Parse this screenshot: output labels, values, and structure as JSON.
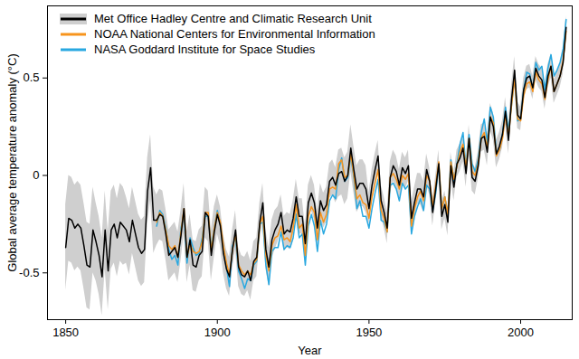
{
  "chart_data": {
    "type": "line",
    "xlabel": "Year",
    "ylabel": "Global average temperature anomaly (°C)",
    "xlim": [
      1844,
      2017
    ],
    "ylim": [
      -0.74,
      0.87
    ],
    "xticks": [
      1850,
      1900,
      1950,
      2000
    ],
    "yticks": [
      -0.5,
      0,
      0.5
    ],
    "grid": false,
    "legend": "top-left",
    "x": [
      1850,
      1851,
      1852,
      1853,
      1854,
      1855,
      1856,
      1857,
      1858,
      1859,
      1860,
      1861,
      1862,
      1863,
      1864,
      1865,
      1866,
      1867,
      1868,
      1869,
      1870,
      1871,
      1872,
      1873,
      1874,
      1875,
      1876,
      1877,
      1878,
      1879,
      1880,
      1881,
      1882,
      1883,
      1884,
      1885,
      1886,
      1887,
      1888,
      1889,
      1890,
      1891,
      1892,
      1893,
      1894,
      1895,
      1896,
      1897,
      1898,
      1899,
      1900,
      1901,
      1902,
      1903,
      1904,
      1905,
      1906,
      1907,
      1908,
      1909,
      1910,
      1911,
      1912,
      1913,
      1914,
      1915,
      1916,
      1917,
      1918,
      1919,
      1920,
      1921,
      1922,
      1923,
      1924,
      1925,
      1926,
      1927,
      1928,
      1929,
      1930,
      1931,
      1932,
      1933,
      1934,
      1935,
      1936,
      1937,
      1938,
      1939,
      1940,
      1941,
      1942,
      1943,
      1944,
      1945,
      1946,
      1947,
      1948,
      1949,
      1950,
      1951,
      1952,
      1953,
      1954,
      1955,
      1956,
      1957,
      1958,
      1959,
      1960,
      1961,
      1962,
      1963,
      1964,
      1965,
      1966,
      1967,
      1968,
      1969,
      1970,
      1971,
      1972,
      1973,
      1974,
      1975,
      1976,
      1977,
      1978,
      1979,
      1980,
      1981,
      1982,
      1983,
      1984,
      1985,
      1986,
      1987,
      1988,
      1989,
      1990,
      1991,
      1992,
      1993,
      1994,
      1995,
      1996,
      1997,
      1998,
      1999,
      2000,
      2001,
      2002,
      2003,
      2004,
      2005,
      2006,
      2007,
      2008,
      2009,
      2010,
      2011,
      2012,
      2013,
      2014,
      2015
    ],
    "series": [
      {
        "name": "Met Office Hadley Centre and Climatic Research Unit",
        "color": "#000000",
        "values": [
          -0.37,
          -0.22,
          -0.23,
          -0.27,
          -0.25,
          -0.27,
          -0.36,
          -0.46,
          -0.47,
          -0.28,
          -0.34,
          -0.41,
          -0.52,
          -0.28,
          -0.49,
          -0.28,
          -0.25,
          -0.32,
          -0.24,
          -0.26,
          -0.28,
          -0.34,
          -0.23,
          -0.3,
          -0.37,
          -0.4,
          -0.38,
          -0.08,
          0.04,
          -0.23,
          -0.23,
          -0.2,
          -0.21,
          -0.3,
          -0.41,
          -0.39,
          -0.37,
          -0.42,
          -0.31,
          -0.17,
          -0.42,
          -0.33,
          -0.46,
          -0.47,
          -0.41,
          -0.39,
          -0.19,
          -0.21,
          -0.41,
          -0.29,
          -0.2,
          -0.26,
          -0.4,
          -0.48,
          -0.52,
          -0.38,
          -0.28,
          -0.47,
          -0.51,
          -0.52,
          -0.49,
          -0.54,
          -0.44,
          -0.42,
          -0.24,
          -0.14,
          -0.38,
          -0.47,
          -0.33,
          -0.28,
          -0.25,
          -0.19,
          -0.3,
          -0.28,
          -0.29,
          -0.22,
          -0.11,
          -0.21,
          -0.21,
          -0.35,
          -0.14,
          -0.09,
          -0.14,
          -0.27,
          -0.13,
          -0.18,
          -0.15,
          -0.03,
          -0.01,
          -0.05,
          0.01,
          0.02,
          -0.03,
          0.0,
          0.14,
          0.03,
          -0.07,
          -0.04,
          -0.04,
          -0.07,
          -0.17,
          -0.05,
          0.03,
          0.1,
          -0.13,
          -0.19,
          -0.27,
          -0.01,
          0.05,
          0.02,
          -0.05,
          0.04,
          0.01,
          0.05,
          -0.22,
          -0.14,
          -0.07,
          -0.07,
          -0.11,
          0.03,
          -0.03,
          -0.19,
          -0.07,
          0.06,
          -0.21,
          -0.15,
          -0.24,
          0.05,
          -0.06,
          0.06,
          0.09,
          0.14,
          0.01,
          0.19,
          -0.01,
          -0.03,
          0.05,
          0.19,
          0.2,
          0.12,
          0.3,
          0.25,
          0.11,
          0.15,
          0.21,
          0.33,
          0.18,
          0.39,
          0.54,
          0.31,
          0.29,
          0.44,
          0.5,
          0.51,
          0.45,
          0.55,
          0.51,
          0.49,
          0.4,
          0.51,
          0.56,
          0.43,
          0.47,
          0.51,
          0.58,
          0.76
        ],
        "error": [
          0.22,
          0.22,
          0.22,
          0.22,
          0.22,
          0.22,
          0.22,
          0.22,
          0.22,
          0.22,
          0.2,
          0.2,
          0.2,
          0.2,
          0.2,
          0.2,
          0.2,
          0.2,
          0.2,
          0.2,
          0.17,
          0.17,
          0.17,
          0.17,
          0.17,
          0.17,
          0.17,
          0.17,
          0.17,
          0.17,
          0.13,
          0.13,
          0.13,
          0.13,
          0.13,
          0.13,
          0.13,
          0.13,
          0.13,
          0.13,
          0.13,
          0.13,
          0.13,
          0.13,
          0.13,
          0.13,
          0.13,
          0.13,
          0.13,
          0.13,
          0.1,
          0.1,
          0.1,
          0.1,
          0.1,
          0.1,
          0.1,
          0.1,
          0.1,
          0.1,
          0.1,
          0.1,
          0.1,
          0.1,
          0.1,
          0.1,
          0.1,
          0.1,
          0.1,
          0.1,
          0.09,
          0.09,
          0.09,
          0.09,
          0.09,
          0.09,
          0.09,
          0.09,
          0.09,
          0.09,
          0.09,
          0.09,
          0.09,
          0.09,
          0.09,
          0.09,
          0.09,
          0.09,
          0.09,
          0.09,
          0.12,
          0.12,
          0.12,
          0.12,
          0.12,
          0.12,
          0.12,
          0.12,
          0.12,
          0.12,
          0.08,
          0.08,
          0.08,
          0.08,
          0.08,
          0.08,
          0.08,
          0.08,
          0.08,
          0.08,
          0.08,
          0.08,
          0.08,
          0.08,
          0.08,
          0.08,
          0.08,
          0.08,
          0.08,
          0.08,
          0.07,
          0.07,
          0.07,
          0.07,
          0.07,
          0.07,
          0.07,
          0.07,
          0.07,
          0.07,
          0.07,
          0.07,
          0.07,
          0.07,
          0.07,
          0.07,
          0.07,
          0.07,
          0.07,
          0.07,
          0.07,
          0.07,
          0.07,
          0.07,
          0.07,
          0.07,
          0.07,
          0.07,
          0.07,
          0.07,
          0.06,
          0.06,
          0.06,
          0.06,
          0.06,
          0.06,
          0.06,
          0.06,
          0.06,
          0.06,
          0.06,
          0.06,
          0.06,
          0.06,
          0.06,
          0.06
        ]
      },
      {
        "name": "NOAA National Centers for Environmental Information",
        "color": "#f7941d",
        "values": [
          null,
          null,
          null,
          null,
          null,
          null,
          null,
          null,
          null,
          null,
          null,
          null,
          null,
          null,
          null,
          null,
          null,
          null,
          null,
          null,
          null,
          null,
          null,
          null,
          null,
          null,
          null,
          null,
          null,
          null,
          -0.24,
          -0.19,
          -0.21,
          -0.28,
          -0.36,
          -0.38,
          -0.36,
          -0.42,
          -0.29,
          -0.17,
          -0.42,
          -0.35,
          -0.39,
          -0.4,
          -0.39,
          -0.34,
          -0.19,
          -0.19,
          -0.39,
          -0.27,
          -0.19,
          -0.24,
          -0.36,
          -0.45,
          -0.51,
          -0.38,
          -0.3,
          -0.46,
          -0.49,
          -0.51,
          -0.49,
          -0.51,
          -0.45,
          -0.43,
          -0.25,
          -0.21,
          -0.41,
          -0.49,
          -0.36,
          -0.32,
          -0.31,
          -0.26,
          -0.33,
          -0.32,
          -0.34,
          -0.27,
          -0.15,
          -0.27,
          -0.25,
          -0.41,
          -0.21,
          -0.16,
          -0.19,
          -0.33,
          -0.19,
          -0.24,
          -0.2,
          -0.07,
          -0.06,
          -0.07,
          0.06,
          0.08,
          -0.01,
          0.0,
          0.11,
          0.0,
          -0.12,
          -0.1,
          -0.14,
          -0.15,
          -0.22,
          -0.11,
          -0.04,
          0.03,
          -0.18,
          -0.22,
          -0.29,
          -0.01,
          0.01,
          -0.02,
          -0.07,
          0.0,
          -0.02,
          0.01,
          -0.26,
          -0.17,
          -0.11,
          -0.08,
          -0.13,
          0.0,
          -0.03,
          -0.16,
          -0.05,
          0.07,
          -0.17,
          -0.11,
          -0.2,
          0.07,
          -0.02,
          0.05,
          0.12,
          0.16,
          0.04,
          0.19,
          0.02,
          0.0,
          0.06,
          0.19,
          0.22,
          0.14,
          0.3,
          0.27,
          0.1,
          0.13,
          0.19,
          0.31,
          0.2,
          0.36,
          0.5,
          0.29,
          0.28,
          0.41,
          0.47,
          0.48,
          0.43,
          0.53,
          0.49,
          0.47,
          0.39,
          0.49,
          0.56,
          0.43,
          0.47,
          0.51,
          0.59,
          0.74
        ]
      },
      {
        "name": "NASA Goddard Institute for Space Studies",
        "color": "#29a8e0",
        "values": [
          null,
          null,
          null,
          null,
          null,
          null,
          null,
          null,
          null,
          null,
          null,
          null,
          null,
          null,
          null,
          null,
          null,
          null,
          null,
          null,
          null,
          null,
          null,
          null,
          null,
          null,
          null,
          null,
          null,
          null,
          -0.26,
          -0.18,
          -0.2,
          -0.27,
          -0.38,
          -0.43,
          -0.41,
          -0.46,
          -0.27,
          -0.2,
          -0.45,
          -0.32,
          -0.37,
          -0.41,
          -0.4,
          -0.32,
          -0.21,
          -0.21,
          -0.37,
          -0.27,
          -0.18,
          -0.25,
          -0.38,
          -0.47,
          -0.57,
          -0.36,
          -0.32,
          -0.49,
          -0.53,
          -0.58,
          -0.53,
          -0.54,
          -0.46,
          -0.44,
          -0.25,
          -0.24,
          -0.46,
          -0.56,
          -0.39,
          -0.37,
          -0.37,
          -0.29,
          -0.38,
          -0.36,
          -0.37,
          -0.32,
          -0.2,
          -0.32,
          -0.3,
          -0.46,
          -0.26,
          -0.2,
          -0.26,
          -0.39,
          -0.23,
          -0.3,
          -0.25,
          -0.13,
          -0.1,
          -0.12,
          0.03,
          0.09,
          -0.03,
          -0.01,
          0.1,
          -0.01,
          -0.17,
          -0.13,
          -0.21,
          -0.21,
          -0.27,
          -0.17,
          -0.09,
          -0.02,
          -0.23,
          -0.24,
          -0.29,
          -0.05,
          -0.04,
          -0.07,
          -0.13,
          -0.04,
          -0.07,
          -0.05,
          -0.3,
          -0.21,
          -0.16,
          -0.12,
          -0.18,
          -0.05,
          -0.07,
          -0.18,
          -0.09,
          0.06,
          -0.17,
          -0.11,
          -0.2,
          0.08,
          -0.03,
          0.06,
          0.16,
          0.22,
          0.04,
          0.21,
          0.06,
          0.02,
          0.08,
          0.22,
          0.29,
          0.17,
          0.35,
          0.3,
          0.12,
          0.13,
          0.21,
          0.35,
          0.23,
          0.36,
          0.51,
          0.28,
          0.29,
          0.44,
          0.53,
          0.52,
          0.44,
          0.58,
          0.54,
          0.56,
          0.44,
          0.55,
          0.62,
          0.51,
          0.54,
          0.58,
          0.65,
          0.8
        ]
      }
    ]
  }
}
